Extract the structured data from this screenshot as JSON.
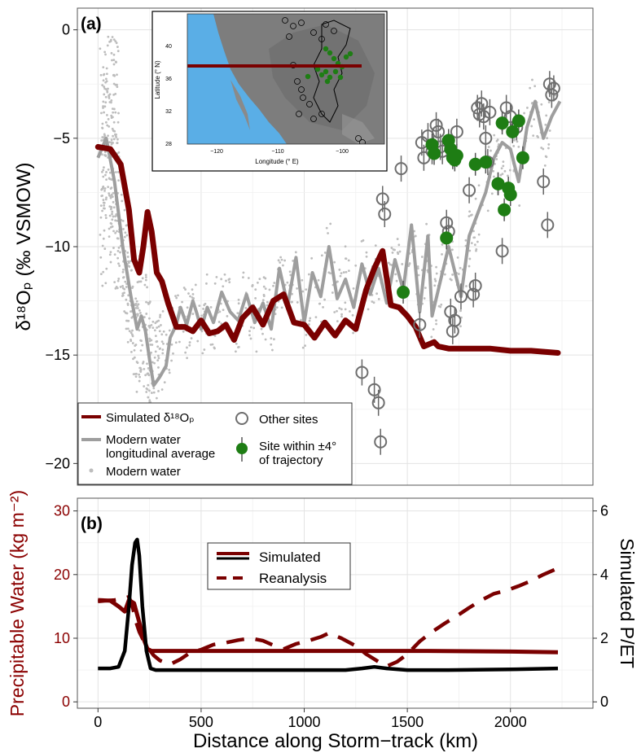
{
  "colors": {
    "simulated": "#7a0000",
    "modern_avg": "#9e9e9e",
    "modern_water": "#bdbdbd",
    "site_within": "#1e7d14",
    "other_sites": "#6e6e6e",
    "pw_axis_label": "#8b0000",
    "grid": "#e3e3e3",
    "inset_ocean": "#5aaee6",
    "inset_land": "#7d7d7d"
  },
  "panel_a": {
    "tag": "(a)",
    "ylabel": "δ¹⁸Oₚ (‰ VSMOW)",
    "yticks": [
      "0",
      "−5",
      "−10",
      "−15",
      "−20"
    ],
    "legend": {
      "simulated": "Simulated δ¹⁸Oₚ",
      "modern_avg_1": "Modern water",
      "modern_avg_2": "longitudinal average",
      "modern_water": "Modern water",
      "other_sites": "Other sites",
      "site_within_1": "Site within ±4°",
      "site_within_2": "of trajectory"
    },
    "inset": {
      "ylabel": "Latitude (° N)",
      "xlabel": "Longitude (° E)",
      "yticks": [
        "40",
        "36",
        "32",
        "28"
      ],
      "xticks": [
        "−120",
        "−110",
        "−100"
      ]
    }
  },
  "panel_b": {
    "tag": "(b)",
    "ylabel_left": "Precipitable Water (kg m⁻²)",
    "ylabel_right": "Simulated P/ET",
    "yticks_left": [
      "0",
      "10",
      "20",
      "30"
    ],
    "yticks_right": [
      "0",
      "2",
      "4",
      "6"
    ],
    "xticks": [
      "0",
      "500",
      "1000",
      "1500",
      "2000"
    ],
    "xlabel": "Distance along Storm−track (km)",
    "legend": {
      "simulated": "Simulated",
      "reanalysis": "Reanalysis"
    }
  },
  "chart_data": [
    {
      "type": "line",
      "panel": "a",
      "xlabel": "",
      "ylabel": "δ¹⁸Oₚ (‰ VSMOW)",
      "xlim": [
        -100,
        2400
      ],
      "ylim": [
        -21,
        1
      ],
      "grid": true,
      "legend_position": "bottom-left",
      "series": [
        {
          "name": "Simulated δ¹⁸Oₚ",
          "x": [
            0,
            60,
            110,
            150,
            175,
            200,
            220,
            240,
            260,
            285,
            310,
            340,
            380,
            420,
            460,
            500,
            540,
            580,
            620,
            660,
            700,
            750,
            800,
            850,
            900,
            950,
            1000,
            1050,
            1100,
            1150,
            1200,
            1250,
            1300,
            1340,
            1380,
            1420,
            1460,
            1500,
            1540,
            1580,
            1630,
            1650,
            1700,
            1800,
            1900,
            2000,
            2100,
            2230
          ],
          "y": [
            -5.4,
            -5.5,
            -6.2,
            -8.3,
            -10.6,
            -11.2,
            -10.0,
            -8.4,
            -9.3,
            -11.2,
            -11.6,
            -12.6,
            -13.7,
            -13.7,
            -13.9,
            -13.4,
            -14.0,
            -13.9,
            -13.6,
            -14.3,
            -13.3,
            -12.8,
            -13.6,
            -12.5,
            -12.2,
            -13.5,
            -13.6,
            -14.2,
            -13.5,
            -14.1,
            -13.4,
            -13.8,
            -12.0,
            -11.0,
            -10.2,
            -12.7,
            -12.8,
            -13.2,
            -13.7,
            -14.6,
            -14.4,
            -14.6,
            -14.7,
            -14.7,
            -14.7,
            -14.8,
            -14.8,
            -14.9
          ]
        },
        {
          "name": "Modern water longitudinal average",
          "x": [
            0,
            40,
            80,
            120,
            160,
            190,
            210,
            230,
            250,
            270,
            300,
            330,
            350,
            380,
            400,
            430,
            460,
            480,
            500,
            530,
            560,
            600,
            640,
            680,
            720,
            760,
            800,
            840,
            880,
            920,
            960,
            1000,
            1040,
            1080,
            1120,
            1160,
            1200,
            1240,
            1280,
            1320,
            1360,
            1400,
            1440,
            1480,
            1520,
            1560,
            1600,
            1620,
            1660,
            1700,
            1760,
            1800,
            1840,
            1880,
            1920,
            1960,
            2000,
            2040,
            2080,
            2120,
            2160,
            2200,
            2240
          ],
          "y": [
            -5.9,
            -5.0,
            -7.0,
            -10.0,
            -12.3,
            -13.8,
            -13.2,
            -13.9,
            -15.2,
            -16.4,
            -16.0,
            -15.5,
            -14.2,
            -13.6,
            -12.8,
            -13.6,
            -12.5,
            -13.1,
            -13.8,
            -12.8,
            -13.5,
            -12.1,
            -13.0,
            -13.4,
            -12.2,
            -13.5,
            -12.6,
            -13.8,
            -11.0,
            -12.7,
            -10.5,
            -13.5,
            -11.2,
            -12.3,
            -10.0,
            -12.4,
            -11.5,
            -12.8,
            -10.8,
            -12.2,
            -11.0,
            -12.6,
            -10.6,
            -12.0,
            -9.0,
            -13.0,
            -9.5,
            -13.2,
            -11.6,
            -10.0,
            -12.3,
            -9.5,
            -8.5,
            -7.5,
            -5.9,
            -5.2,
            -5.5,
            -7.0,
            -4.5,
            -3.3,
            -5.0,
            -4.0,
            -3.3
          ]
        }
      ],
      "points": {
        "site_within_4deg": {
          "x": [
            1480,
            1620,
            1630,
            1700,
            1710,
            1720,
            1730,
            1740,
            1690,
            1830,
            1880,
            1940,
            1960,
            1970,
            1990,
            2000,
            2010,
            2040,
            2060,
            1940
          ],
          "y": [
            -12.1,
            -5.3,
            -5.7,
            -5.1,
            -5.5,
            -5.9,
            -6.0,
            -5.8,
            -9.6,
            -6.2,
            -6.1,
            -7.1,
            -4.3,
            -8.3,
            -7.3,
            -7.6,
            -4.7,
            -4.2,
            -5.9,
            -7.1
          ]
        },
        "other_sites": {
          "x": [
            1280,
            1340,
            1360,
            1370,
            1380,
            1390,
            1470,
            1560,
            1570,
            1580,
            1600,
            1620,
            1640,
            1650,
            1660,
            1670,
            1690,
            1700,
            1710,
            1720,
            1730,
            1740,
            1760,
            1800,
            1820,
            1830,
            1840,
            1850,
            1860,
            1870,
            1880,
            1890,
            1900,
            1960,
            1980,
            2000,
            2030,
            2160,
            2180,
            2190,
            2200,
            2210
          ],
          "y": [
            -15.8,
            -16.6,
            -17.2,
            -19.0,
            -7.8,
            -8.5,
            -6.4,
            -13.6,
            -5.2,
            -5.9,
            -4.9,
            -5.6,
            -4.4,
            -4.7,
            -5.4,
            -5.6,
            -8.9,
            -9.3,
            -13.0,
            -13.9,
            -13.4,
            -4.7,
            -12.3,
            -7.4,
            -12.2,
            -11.8,
            -3.6,
            -3.9,
            -3.4,
            -4.0,
            -5.0,
            -6.1,
            -3.8,
            -10.2,
            -3.6,
            -4.0,
            -4.5,
            -7.0,
            -9.0,
            -2.5,
            -3.0,
            -2.7
          ]
        }
      }
    },
    {
      "type": "line",
      "panel": "b",
      "xlabel": "Distance along Storm−track (km)",
      "ylabel": "Precipitable Water (kg m⁻²)",
      "ylabel_right": "Simulated P/ET",
      "xlim": [
        -100,
        2400
      ],
      "ylim": [
        -1,
        32
      ],
      "ylim_right": [
        -0.2,
        6.4
      ],
      "grid": true,
      "legend_position": "top-center",
      "series": [
        {
          "name": "Simulated",
          "axis": "right",
          "x": [
            0,
            60,
            100,
            130,
            150,
            165,
            180,
            190,
            200,
            215,
            235,
            255,
            280,
            350,
            500,
            800,
            1000,
            1200,
            1280,
            1340,
            1400,
            1500,
            1700,
            2000,
            2230
          ],
          "y": [
            1.05,
            1.05,
            1.1,
            1.6,
            3.0,
            4.3,
            5.0,
            5.1,
            4.6,
            3.0,
            1.6,
            1.05,
            1.0,
            1.0,
            1.0,
            1.0,
            1.0,
            1.0,
            1.05,
            1.1,
            1.05,
            1.0,
            1.0,
            1.02,
            1.05
          ]
        },
        {
          "name": "Simulated precipitable water",
          "axis": "left",
          "x": [
            0,
            60,
            100,
            130,
            150,
            175,
            200,
            220,
            240,
            260,
            300,
            400,
            800,
            1200,
            1600,
            2000,
            2230
          ],
          "y": [
            16.0,
            15.9,
            15.0,
            14.2,
            16.0,
            15.5,
            12.5,
            10.0,
            8.3,
            8.0,
            8.0,
            8.0,
            8.0,
            8.0,
            8.0,
            7.9,
            7.8
          ]
        },
        {
          "name": "Reanalysis",
          "axis": "left",
          "dash": true,
          "x": [
            0,
            80,
            120,
            150,
            165,
            185,
            200,
            230,
            270,
            300,
            350,
            400,
            450,
            500,
            560,
            620,
            680,
            740,
            800,
            850,
            900,
            960,
            1020,
            1080,
            1120,
            1180,
            1250,
            1300,
            1360,
            1400,
            1450,
            1500,
            1560,
            1620,
            1680,
            1740,
            1800,
            1860,
            1920,
            1980,
            2040,
            2100,
            2160,
            2230
          ],
          "y": [
            15.8,
            16.0,
            16.2,
            16.5,
            15.3,
            12.5,
            11.0,
            9.0,
            7.3,
            6.5,
            5.9,
            6.7,
            7.8,
            8.2,
            9.0,
            9.3,
            9.7,
            10.0,
            9.6,
            8.9,
            8.3,
            9.1,
            9.6,
            10.2,
            10.8,
            10.0,
            8.8,
            7.5,
            6.3,
            5.6,
            6.3,
            7.5,
            9.5,
            11.0,
            12.3,
            13.5,
            14.8,
            16.0,
            17.0,
            17.5,
            18.2,
            19.0,
            20.0,
            21.0
          ]
        }
      ]
    }
  ]
}
